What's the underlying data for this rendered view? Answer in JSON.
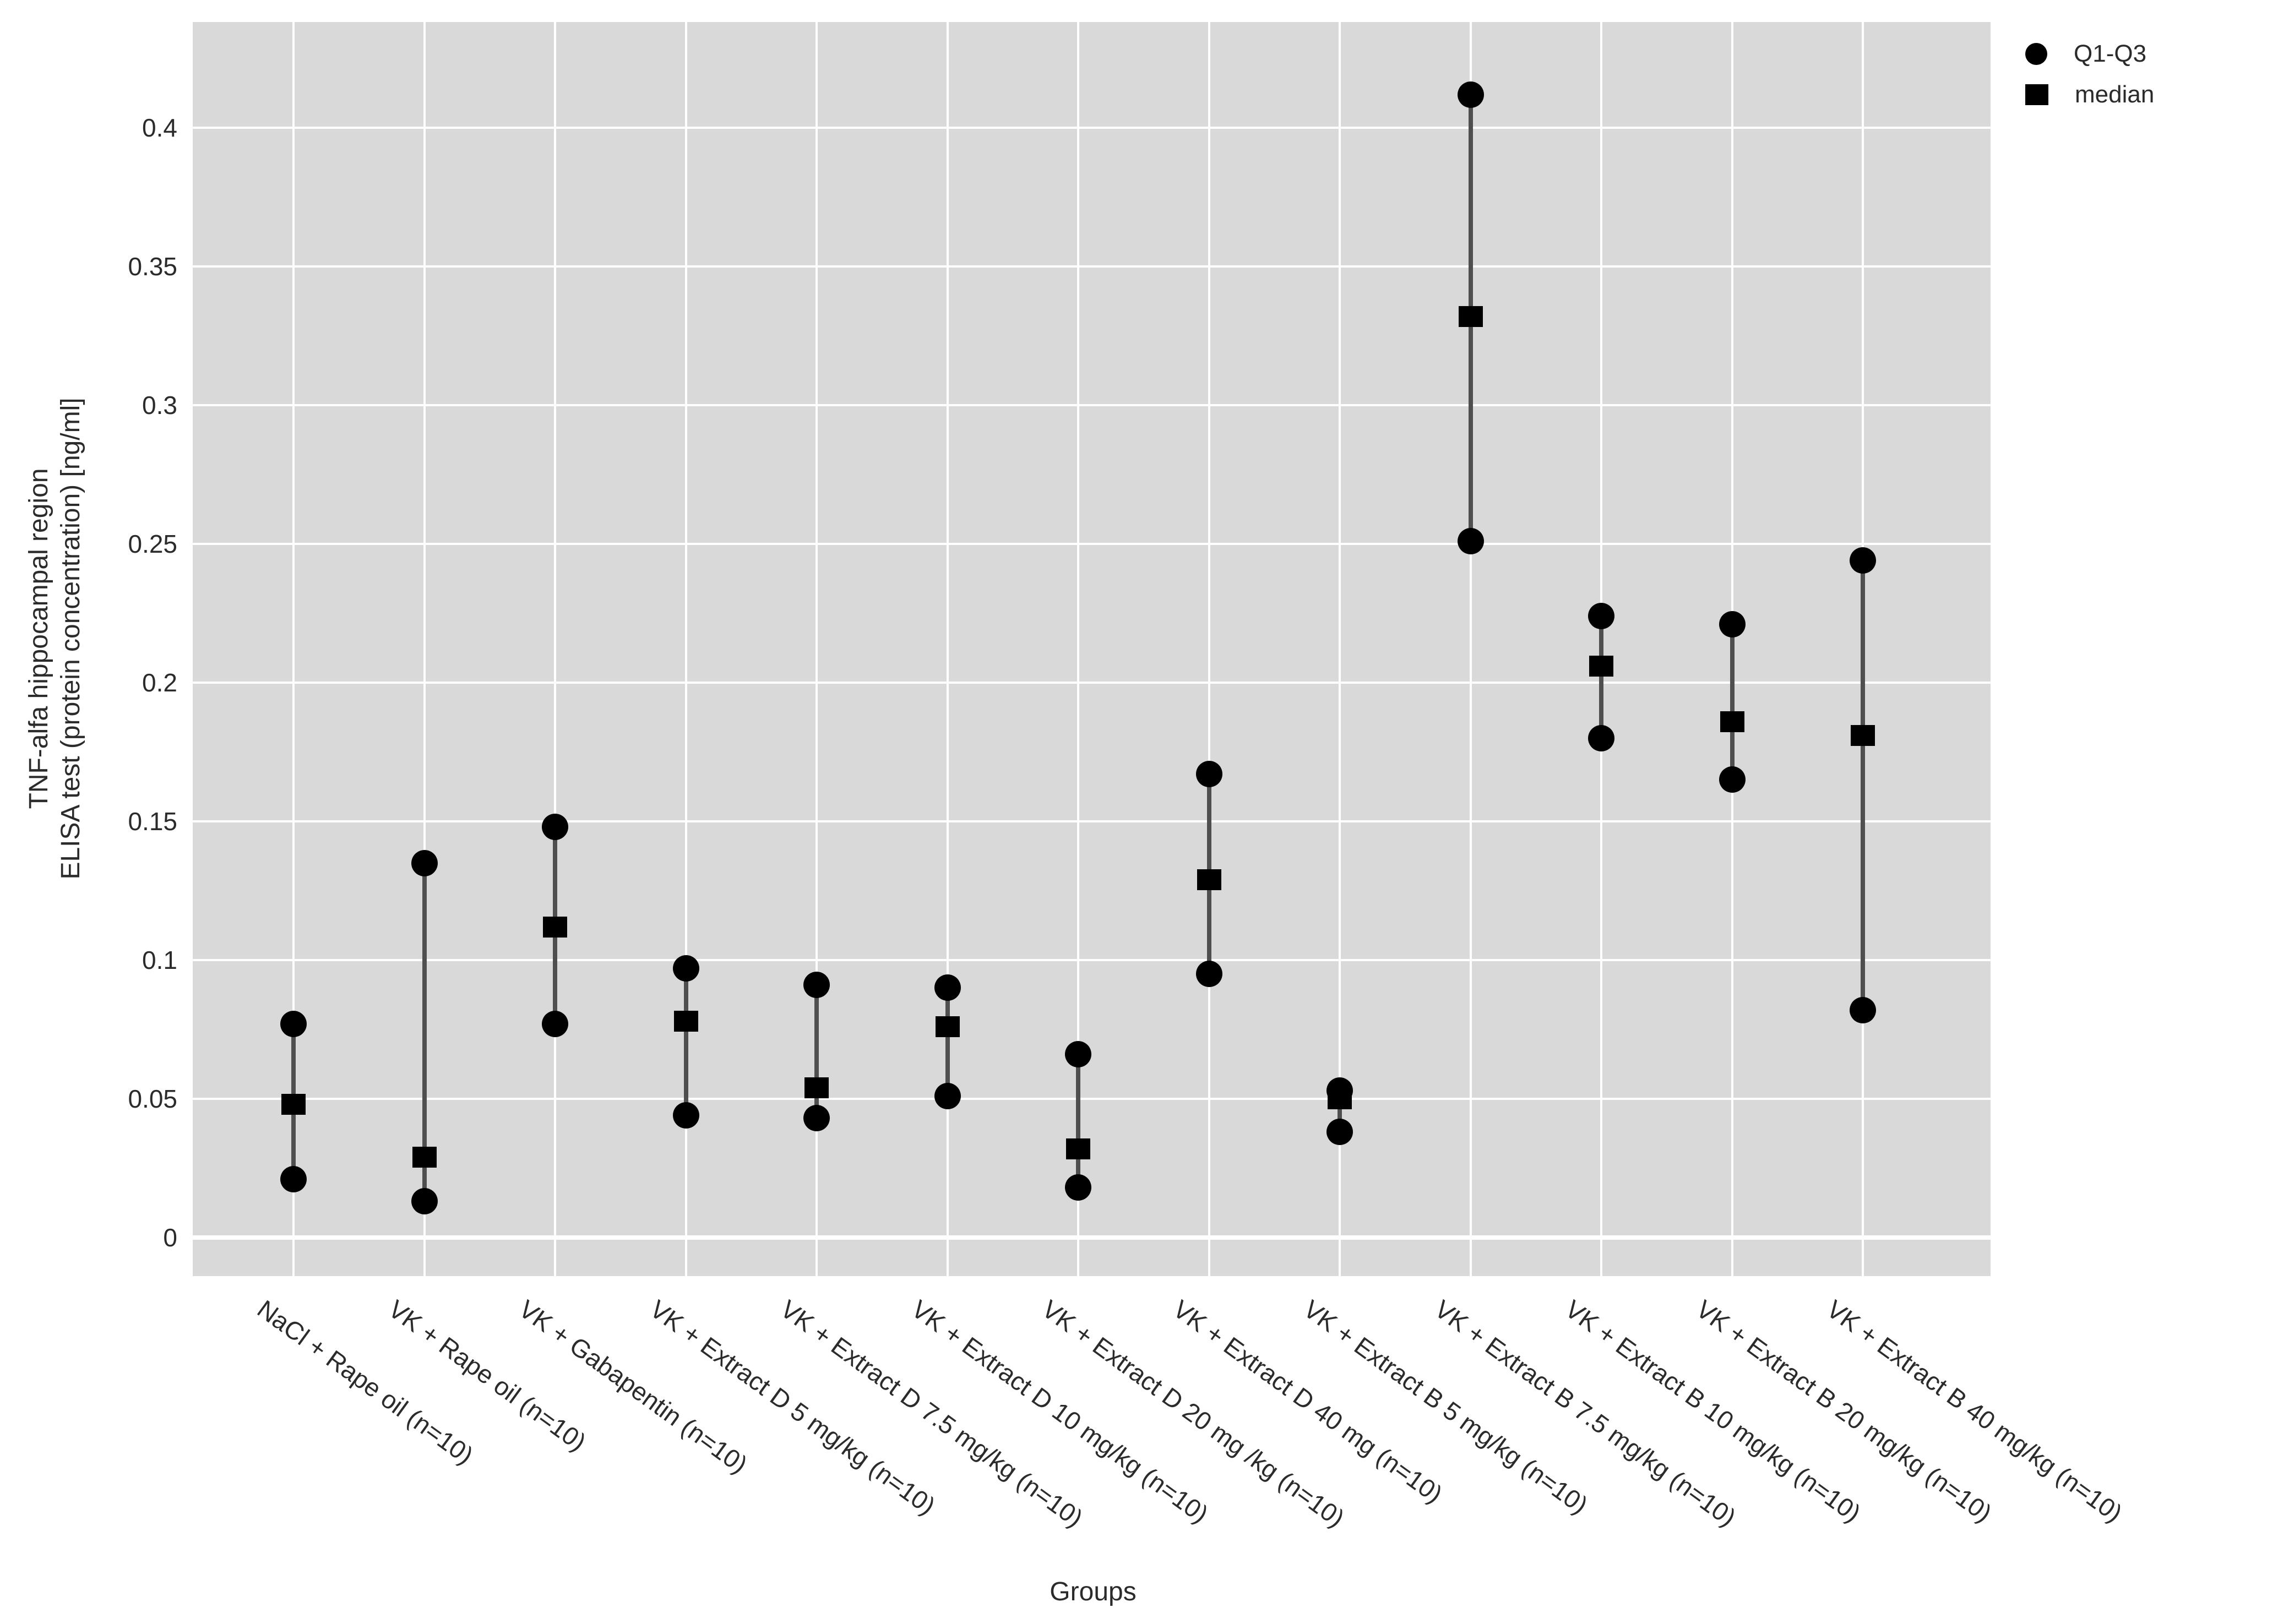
{
  "chart_data": {
    "type": "scatter",
    "title": "",
    "xlabel": "Groups",
    "ylabel_lines": [
      "TNF-alfa hippocampal region",
      "ELISA test (protein concentration) [ng/ml]"
    ],
    "ylim": [
      -0.014,
      0.438
    ],
    "yticks": [
      0,
      0.05,
      0.1,
      0.15,
      0.2,
      0.25,
      0.3,
      0.35,
      0.4
    ],
    "ytick_labels": [
      "0",
      "0.05",
      "0.1",
      "0.15",
      "0.2",
      "0.25",
      "0.3",
      "0.35",
      "0.4"
    ],
    "grid": "on",
    "plot_bg_color": "#d9d9d9",
    "grid_color": "#ffffff",
    "marker_color": "#000000",
    "range_line_color": "#4f4f4f",
    "legend_position": "top-right",
    "legend": [
      {
        "marker": "circle",
        "label": "Q1-Q3"
      },
      {
        "marker": "square",
        "label": "median"
      }
    ],
    "categories": [
      "NaCl + Rape oil (n=10)",
      "VK + Rape oil (n=10)",
      "VK + Gabapentin (n=10)",
      "VK + Extract D 5 mg/kg (n=10)",
      "VK + Extract D 7.5 mg/kg (n=10)",
      "VK + Extract D 10 mg/kg (n=10)",
      "VK + Extract D 20 mg /kg (n=10)",
      "VK + Extract D 40 mg (n=10)",
      "VK + Extract B 5 mg/kg (n=10)",
      "VK + Extract B 7.5 mg/kg (n=10)",
      "VK + Extract B 10 mg/kg (n=10)",
      "VK + Extract B 20 mg/kg (n=10)",
      "VK + Extract B 40 mg/kg (n=10)"
    ],
    "series": [
      {
        "name": "Q3",
        "values": [
          0.077,
          0.135,
          0.148,
          0.097,
          0.091,
          0.09,
          0.066,
          0.167,
          0.053,
          0.412,
          0.224,
          0.221,
          0.244
        ]
      },
      {
        "name": "median",
        "values": [
          0.048,
          0.029,
          0.112,
          0.078,
          0.054,
          0.076,
          0.032,
          0.129,
          0.05,
          0.332,
          0.206,
          0.186,
          0.181
        ]
      },
      {
        "name": "Q1",
        "values": [
          0.021,
          0.013,
          0.077,
          0.044,
          0.043,
          0.051,
          0.018,
          0.095,
          0.038,
          0.251,
          0.18,
          0.165,
          0.082
        ]
      }
    ]
  }
}
